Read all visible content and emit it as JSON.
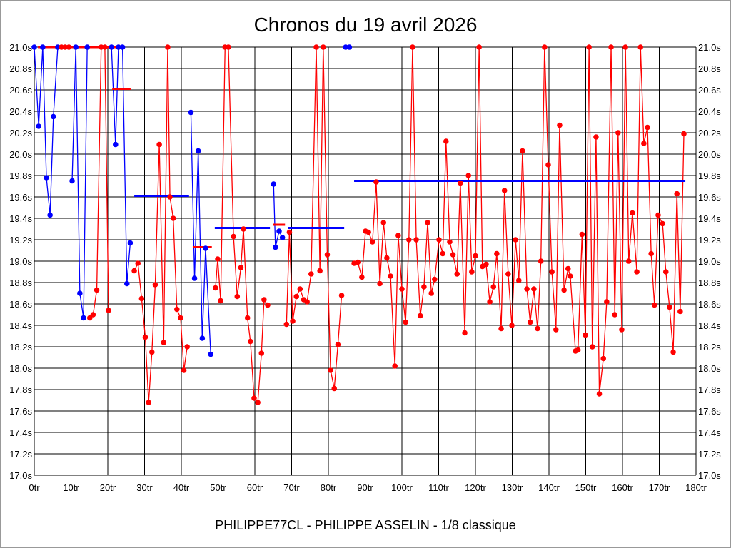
{
  "chart_data": {
    "type": "line",
    "title": "Chronos du 19 avril 2026",
    "xlabel": "PHILIPPE77CL - PHILIPPE ASSELIN - 1/8 classique",
    "ylabel": "",
    "xlim": [
      0,
      180
    ],
    "ylim": [
      17.0,
      21.0
    ],
    "x_ticks": [
      "0tr",
      "10tr",
      "20tr",
      "30tr",
      "40tr",
      "50tr",
      "60tr",
      "70tr",
      "80tr",
      "90tr",
      "100tr",
      "110tr",
      "120tr",
      "130tr",
      "140tr",
      "150tr",
      "160tr",
      "170tr",
      "180tr"
    ],
    "y_ticks": [
      "21.0s",
      "20.8s",
      "20.6s",
      "20.4s",
      "20.2s",
      "20.0s",
      "19.8s",
      "19.6s",
      "19.4s",
      "19.2s",
      "19.0s",
      "18.8s",
      "18.6s",
      "18.4s",
      "18.2s",
      "18.0s",
      "17.8s",
      "17.6s",
      "17.4s",
      "17.2s",
      "17.0s"
    ],
    "grid": true,
    "colors": {
      "blue": "#0000ff",
      "red": "#ff0000"
    },
    "segments": [
      {
        "color": "blue",
        "points": [
          [
            0,
            21.0
          ],
          [
            1.2,
            20.26
          ],
          [
            2.3,
            21.0
          ],
          [
            3.3,
            19.78
          ],
          [
            4.3,
            19.43
          ],
          [
            5.2,
            20.35
          ],
          [
            6.4,
            21.0
          ]
        ]
      },
      {
        "color": "red",
        "points": [
          [
            7.4,
            21.0
          ],
          [
            8.4,
            21.0
          ],
          [
            9.4,
            21.0
          ]
        ]
      },
      {
        "color": "blue",
        "points": [
          [
            10.3,
            19.75
          ],
          [
            11.3,
            21.0
          ],
          [
            12.4,
            18.7
          ],
          [
            13.4,
            18.47
          ],
          [
            14.4,
            21.0
          ]
        ]
      },
      {
        "color": "red",
        "points": [
          [
            15.1,
            18.47
          ],
          [
            16.0,
            18.5
          ],
          [
            17.0,
            18.73
          ],
          [
            18.2,
            21.0
          ],
          [
            19.2,
            21.0
          ],
          [
            20.2,
            18.54
          ]
        ]
      },
      {
        "color": "blue",
        "points": [
          [
            21.0,
            21.0
          ],
          [
            22.1,
            20.09
          ],
          [
            22.9,
            21.0
          ],
          [
            24.0,
            21.0
          ],
          [
            25.2,
            18.79
          ],
          [
            26.1,
            19.17
          ]
        ]
      },
      {
        "color": "red",
        "points": [
          [
            27.2,
            18.91
          ],
          [
            28.2,
            18.98
          ],
          [
            29.2,
            18.65
          ],
          [
            30.2,
            18.29
          ],
          [
            31.1,
            17.68
          ],
          [
            32.0,
            18.15
          ],
          [
            32.9,
            18.78
          ],
          [
            34.0,
            20.09
          ],
          [
            35.2,
            18.24
          ],
          [
            36.3,
            21.0
          ],
          [
            36.9,
            19.6
          ],
          [
            37.8,
            19.4
          ],
          [
            38.8,
            18.55
          ],
          [
            39.8,
            18.47
          ],
          [
            40.7,
            17.98
          ],
          [
            41.6,
            18.2
          ]
        ]
      },
      {
        "color": "blue",
        "points": [
          [
            42.6,
            20.39
          ],
          [
            43.6,
            18.84
          ],
          [
            44.6,
            20.03
          ],
          [
            45.7,
            18.28
          ],
          [
            46.6,
            19.12
          ],
          [
            48.0,
            18.13
          ]
        ]
      },
      {
        "color": "red",
        "points": [
          [
            49.3,
            18.75
          ],
          [
            49.9,
            19.02
          ],
          [
            50.7,
            18.63
          ],
          [
            51.9,
            21.0
          ],
          [
            52.8,
            21.0
          ],
          [
            54.2,
            19.23
          ],
          [
            55.2,
            18.67
          ],
          [
            56.2,
            18.94
          ],
          [
            56.9,
            19.3
          ],
          [
            58.0,
            18.47
          ],
          [
            58.8,
            18.25
          ],
          [
            59.8,
            17.72
          ],
          [
            60.8,
            17.68
          ],
          [
            61.8,
            18.14
          ],
          [
            62.5,
            18.64
          ],
          [
            63.5,
            18.59
          ]
        ]
      },
      {
        "color": "blue",
        "points": [
          [
            65.1,
            19.72
          ],
          [
            65.6,
            19.13
          ],
          [
            66.6,
            19.28
          ],
          [
            67.5,
            19.22
          ]
        ]
      },
      {
        "color": "red",
        "points": [
          [
            68.6,
            18.41
          ],
          [
            69.4,
            19.27
          ],
          [
            70.3,
            18.44
          ],
          [
            71.3,
            18.67
          ],
          [
            72.3,
            18.74
          ],
          [
            73.3,
            18.64
          ],
          [
            74.2,
            18.62
          ],
          [
            75.3,
            18.88
          ],
          [
            76.7,
            21.0
          ],
          [
            77.7,
            18.91
          ],
          [
            78.6,
            21.0
          ],
          [
            79.7,
            19.06
          ],
          [
            80.6,
            17.98
          ],
          [
            81.6,
            17.81
          ],
          [
            82.6,
            18.22
          ],
          [
            83.6,
            18.68
          ]
        ]
      },
      {
        "color": "blue",
        "points": [
          [
            84.7,
            21.0
          ],
          [
            85.7,
            21.0
          ]
        ]
      },
      {
        "color": "red",
        "points": [
          [
            87.0,
            18.98
          ],
          [
            88.0,
            18.99
          ],
          [
            89.1,
            18.85
          ],
          [
            90.1,
            19.28
          ],
          [
            90.9,
            19.27
          ],
          [
            92.0,
            19.18
          ],
          [
            93.0,
            19.74
          ],
          [
            94.0,
            18.79
          ],
          [
            95.0,
            19.36
          ],
          [
            95.9,
            19.03
          ],
          [
            96.9,
            18.86
          ],
          [
            98.1,
            18.02
          ],
          [
            99.0,
            19.24
          ],
          [
            100.0,
            18.74
          ],
          [
            101.0,
            18.43
          ],
          [
            101.9,
            19.2
          ],
          [
            102.9,
            21.0
          ],
          [
            103.9,
            19.2
          ],
          [
            105.0,
            18.49
          ],
          [
            106.0,
            18.76
          ],
          [
            107.0,
            19.36
          ],
          [
            108.0,
            18.7
          ],
          [
            108.9,
            18.83
          ],
          [
            110.1,
            19.2
          ],
          [
            111.1,
            19.07
          ],
          [
            112.0,
            20.12
          ],
          [
            113.0,
            19.18
          ],
          [
            113.9,
            19.06
          ],
          [
            115.0,
            18.88
          ],
          [
            115.9,
            19.73
          ],
          [
            117.1,
            18.33
          ],
          [
            118.1,
            19.8
          ],
          [
            119.0,
            18.9
          ],
          [
            120.0,
            19.05
          ],
          [
            121.0,
            21.0
          ],
          [
            121.9,
            18.95
          ],
          [
            122.9,
            18.97
          ],
          [
            123.9,
            18.62
          ],
          [
            124.9,
            18.76
          ],
          [
            125.8,
            19.07
          ],
          [
            127.0,
            18.37
          ],
          [
            127.9,
            19.66
          ],
          [
            128.9,
            18.88
          ],
          [
            129.9,
            18.4
          ],
          [
            130.9,
            19.2
          ],
          [
            131.8,
            18.82
          ],
          [
            132.8,
            20.03
          ],
          [
            134.0,
            18.74
          ],
          [
            134.9,
            18.43
          ],
          [
            135.9,
            18.74
          ],
          [
            136.9,
            18.37
          ],
          [
            137.8,
            19.0
          ],
          [
            138.8,
            21.0
          ],
          [
            139.8,
            19.9
          ],
          [
            140.8,
            18.9
          ],
          [
            141.9,
            18.36
          ],
          [
            142.9,
            20.27
          ],
          [
            144.1,
            18.73
          ],
          [
            145.2,
            18.93
          ],
          [
            145.8,
            18.86
          ],
          [
            147.2,
            18.16
          ],
          [
            147.9,
            18.17
          ],
          [
            149.0,
            19.25
          ],
          [
            149.9,
            18.31
          ],
          [
            150.9,
            21.0
          ],
          [
            151.8,
            18.2
          ],
          [
            152.8,
            20.16
          ],
          [
            153.7,
            17.76
          ],
          [
            154.8,
            18.09
          ],
          [
            155.7,
            18.62
          ],
          [
            156.9,
            21.0
          ],
          [
            157.9,
            18.5
          ],
          [
            158.8,
            20.2
          ],
          [
            159.8,
            18.36
          ],
          [
            160.8,
            21.0
          ],
          [
            161.7,
            19.0
          ],
          [
            162.7,
            19.45
          ],
          [
            163.9,
            18.9
          ],
          [
            164.9,
            21.0
          ],
          [
            165.8,
            20.1
          ],
          [
            166.8,
            20.25
          ],
          [
            167.8,
            19.07
          ],
          [
            168.7,
            18.59
          ],
          [
            169.7,
            19.43
          ],
          [
            170.9,
            19.35
          ],
          [
            171.8,
            18.9
          ],
          [
            172.8,
            18.57
          ],
          [
            173.8,
            18.15
          ],
          [
            174.8,
            19.63
          ],
          [
            175.7,
            18.53
          ],
          [
            176.7,
            20.19
          ]
        ]
      }
    ],
    "average_bars": [
      {
        "color": "red",
        "from": 1,
        "to": 24,
        "value": 21.0
      },
      {
        "color": "red",
        "from": 21.2,
        "to": 26.2,
        "value": 20.61
      },
      {
        "color": "blue",
        "from": 27.2,
        "to": 42.1,
        "value": 19.61
      },
      {
        "color": "red",
        "from": 43.1,
        "to": 48.3,
        "value": 19.13
      },
      {
        "color": "blue",
        "from": 49.1,
        "to": 64.1,
        "value": 19.31
      },
      {
        "color": "red",
        "from": 65.0,
        "to": 68.2,
        "value": 19.34
      },
      {
        "color": "blue",
        "from": 69.1,
        "to": 84.3,
        "value": 19.31
      },
      {
        "color": "red",
        "from": 84.9,
        "to": 85.5,
        "value": 21.0
      },
      {
        "color": "blue",
        "from": 87.0,
        "to": 177.1,
        "value": 19.75
      }
    ]
  }
}
